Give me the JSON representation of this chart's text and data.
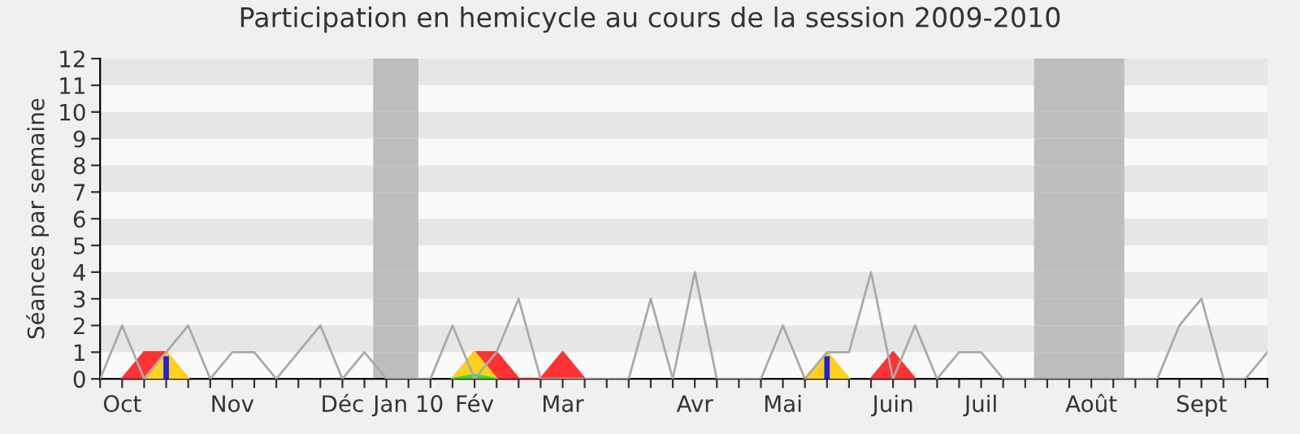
{
  "chart_data": {
    "type": "line",
    "title": "Participation en hemicycle au cours de la session 2009-2010",
    "ylabel": "Séances par semaine",
    "categories": [
      null,
      "Oct",
      null,
      null,
      null,
      null,
      "Nov",
      null,
      null,
      null,
      null,
      "Déc",
      null,
      null,
      "Jan 10",
      null,
      null,
      "Fév",
      null,
      null,
      null,
      "Mar",
      null,
      null,
      null,
      null,
      null,
      "Avr",
      null,
      null,
      null,
      "Mai",
      null,
      null,
      null,
      null,
      "Juin",
      null,
      null,
      null,
      "Juil",
      null,
      null,
      null,
      null,
      "Août",
      null,
      null,
      null,
      null,
      "Sept",
      null,
      null,
      null
    ],
    "ylim": [
      0,
      12
    ],
    "yticks": [
      0,
      1,
      2,
      3,
      4,
      5,
      6,
      7,
      8,
      9,
      10,
      11,
      12
    ],
    "series": [
      {
        "type": "area",
        "color": "#ff3333",
        "values": [
          null,
          0,
          1,
          1,
          0,
          null,
          null,
          null,
          null,
          null,
          null,
          null,
          null,
          null,
          null,
          null,
          0,
          1,
          1,
          0,
          0,
          1,
          0,
          null,
          null,
          null,
          null,
          null,
          null,
          null,
          null,
          null,
          null,
          null,
          null,
          0,
          1,
          0,
          null,
          null,
          null,
          null,
          null,
          null,
          null,
          null,
          null,
          null,
          null,
          null,
          null,
          null,
          null,
          null
        ]
      },
      {
        "type": "area",
        "color": "#ffd21a",
        "values": [
          null,
          null,
          0,
          1,
          0,
          null,
          null,
          null,
          null,
          null,
          null,
          null,
          null,
          null,
          null,
          null,
          0,
          1,
          0,
          null,
          null,
          null,
          null,
          null,
          null,
          null,
          null,
          null,
          null,
          null,
          null,
          null,
          0,
          1,
          0,
          null,
          null,
          null,
          null,
          null,
          null,
          null,
          null,
          null,
          null,
          null,
          null,
          null,
          null,
          null,
          null,
          null,
          null,
          null
        ]
      },
      {
        "type": "area",
        "color": "#33dd33",
        "values": [
          null,
          null,
          null,
          null,
          null,
          null,
          null,
          null,
          null,
          null,
          null,
          null,
          null,
          null,
          null,
          null,
          0,
          0.15,
          0,
          null,
          null,
          null,
          null,
          null,
          null,
          null,
          null,
          null,
          null,
          null,
          null,
          null,
          null,
          null,
          null,
          null,
          null,
          null,
          null,
          null,
          null,
          null,
          null,
          null,
          null,
          null,
          null,
          null,
          null,
          null,
          null,
          null,
          null,
          null
        ]
      },
      {
        "type": "bar",
        "color": "#2222dd",
        "values": [
          null,
          null,
          null,
          0.85,
          null,
          null,
          null,
          null,
          null,
          null,
          null,
          null,
          null,
          null,
          null,
          null,
          null,
          null,
          null,
          null,
          null,
          null,
          null,
          null,
          null,
          null,
          null,
          null,
          null,
          null,
          null,
          null,
          null,
          0.85,
          null,
          null,
          null,
          null,
          null,
          null,
          null,
          null,
          null,
          null,
          null,
          null,
          null,
          null,
          null,
          null,
          null,
          null,
          null,
          null
        ]
      },
      {
        "color": "#aaaaaa",
        "values": [
          0,
          2,
          0,
          1,
          2,
          0,
          1,
          1,
          0,
          1,
          2,
          0,
          1,
          0,
          0,
          0,
          2,
          0,
          1,
          3,
          0,
          0,
          0,
          0,
          0,
          3,
          0,
          4,
          0,
          0,
          0,
          2,
          0,
          1,
          1,
          4,
          0,
          2,
          0,
          1,
          1,
          0,
          0,
          0,
          0,
          0,
          0,
          0,
          0,
          2,
          3,
          0,
          0,
          1
        ]
      }
    ]
  }
}
